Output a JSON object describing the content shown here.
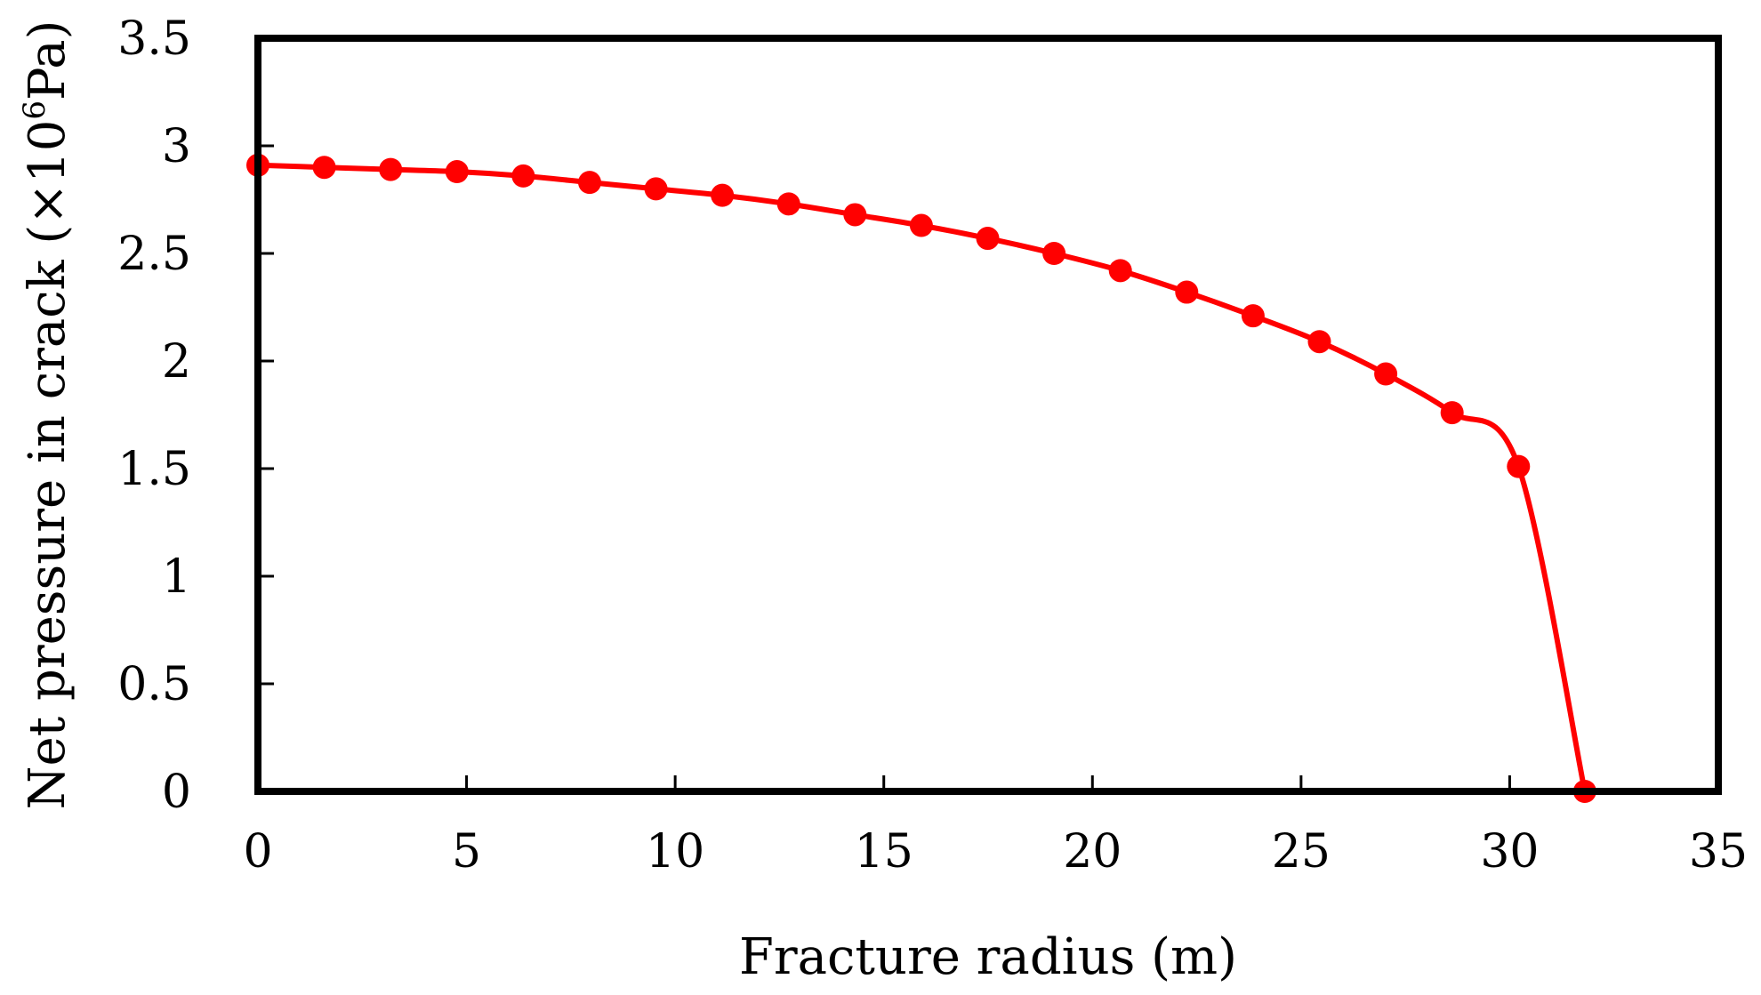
{
  "chart_data": {
    "type": "line",
    "title": "",
    "xlabel": "Fracture radius (m)",
    "ylabel": {
      "prefix": "Net pressure in crack (×10",
      "exponent": "6",
      "suffix": "Pa)"
    },
    "xlim": [
      0,
      35
    ],
    "ylim": [
      0,
      3.5
    ],
    "x_ticks": [
      "0",
      "5",
      "10",
      "15",
      "20",
      "25",
      "30",
      "35"
    ],
    "y_ticks": [
      "0",
      "0.5",
      "1",
      "1.5",
      "2",
      "2.5",
      "3",
      "3.5"
    ],
    "grid": false,
    "legend": "none",
    "series": [
      {
        "color": "#ff0000",
        "marker": "circle",
        "x": [
          0,
          1.59,
          3.18,
          4.77,
          6.36,
          7.95,
          9.54,
          11.13,
          12.72,
          14.31,
          15.9,
          17.49,
          19.08,
          20.67,
          22.26,
          23.85,
          25.44,
          27.03,
          28.62,
          30.21,
          31.8
        ],
        "y": [
          2.91,
          2.9,
          2.89,
          2.88,
          2.86,
          2.83,
          2.8,
          2.77,
          2.73,
          2.68,
          2.63,
          2.57,
          2.5,
          2.42,
          2.32,
          2.21,
          2.09,
          1.94,
          1.76,
          1.51,
          0
        ]
      }
    ]
  }
}
